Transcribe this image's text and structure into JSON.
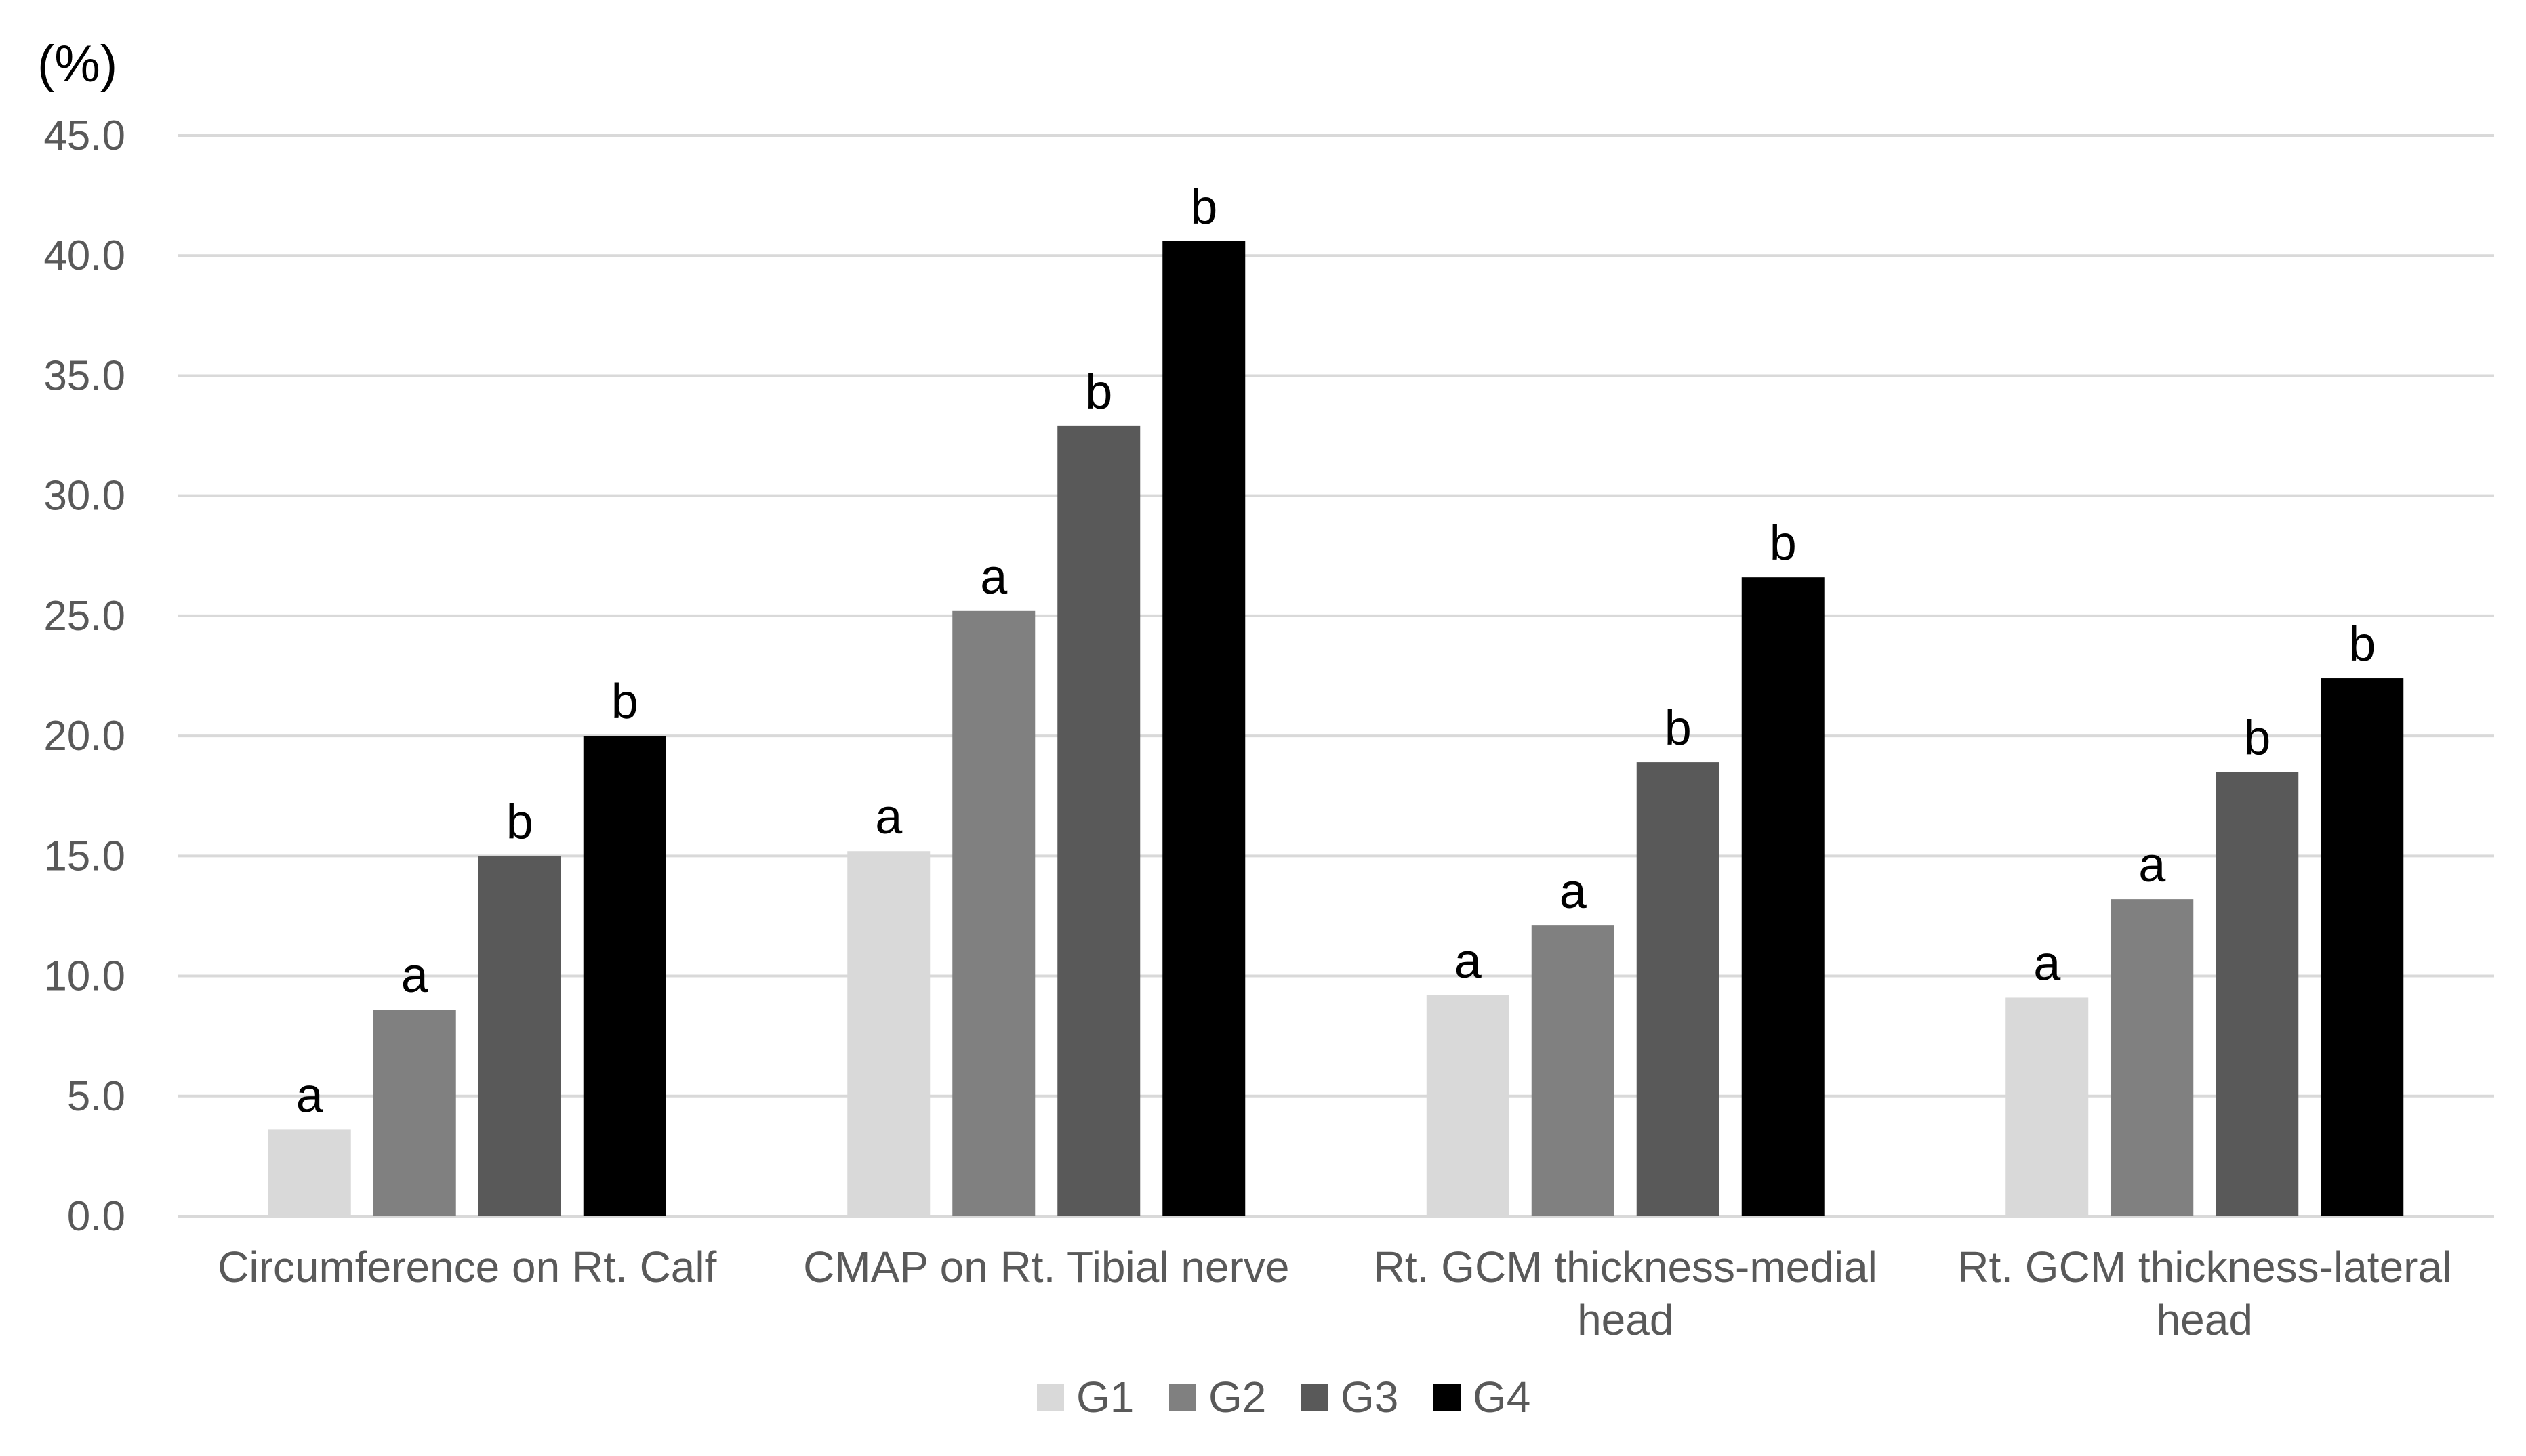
{
  "chart_data": {
    "type": "bar",
    "title": "",
    "unit_label": "(%)",
    "xlabel": "",
    "ylabel": "(%)",
    "ylim": [
      0,
      45
    ],
    "ytick_step": 5,
    "ytick_labels": [
      "0.0",
      "5.0",
      "10.0",
      "15.0",
      "20.0",
      "25.0",
      "30.0",
      "35.0",
      "40.0",
      "45.0"
    ],
    "grid": true,
    "legend_position": "bottom-center",
    "categories": [
      [
        "Circumference on Rt. Calf"
      ],
      [
        "CMAP on Rt. Tibial nerve"
      ],
      [
        "Rt. GCM thickness-medial",
        "head"
      ],
      [
        "Rt. GCM thickness-lateral",
        "head"
      ]
    ],
    "series": [
      {
        "name": "G1",
        "color": "#d9d9d9",
        "values": [
          3.6,
          15.2,
          9.2,
          9.1
        ],
        "labels": [
          "a",
          "a",
          "a",
          "a"
        ]
      },
      {
        "name": "G2",
        "color": "#808080",
        "values": [
          8.6,
          25.2,
          12.1,
          13.2
        ],
        "labels": [
          "a",
          "a",
          "a",
          "a"
        ]
      },
      {
        "name": "G3",
        "color": "#595959",
        "values": [
          15.0,
          32.9,
          18.9,
          18.5
        ],
        "labels": [
          "b",
          "b",
          "b",
          "b"
        ]
      },
      {
        "name": "G4",
        "color": "#000000",
        "values": [
          20.0,
          40.6,
          26.6,
          22.4
        ],
        "labels": [
          "b",
          "b",
          "b",
          "b"
        ]
      }
    ]
  }
}
